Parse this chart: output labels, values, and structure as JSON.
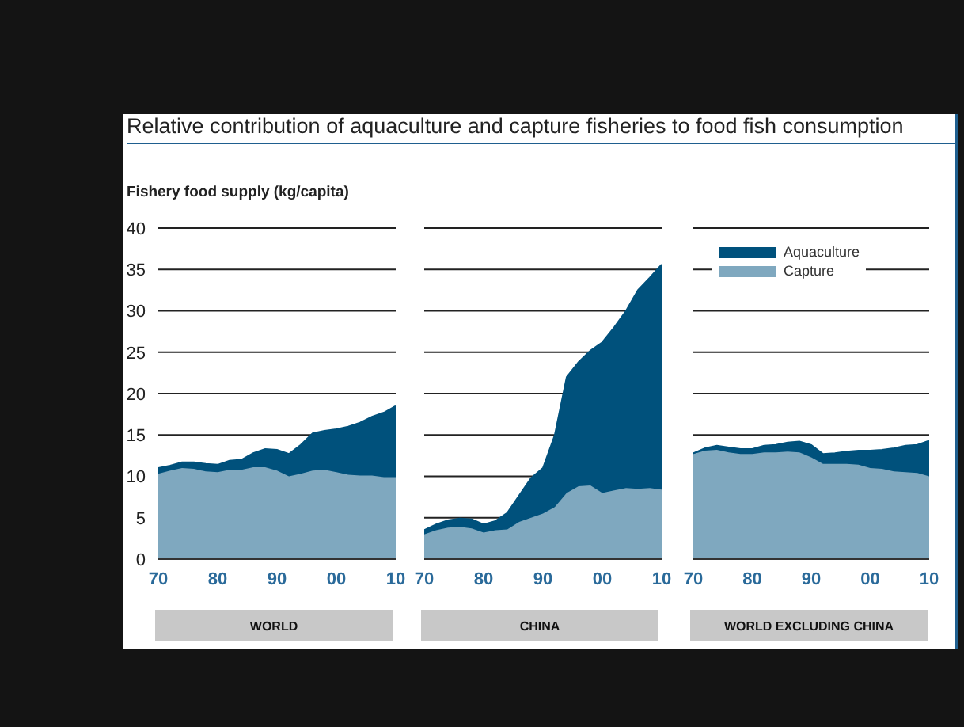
{
  "chart_data": [
    {
      "type": "area",
      "stacked": true,
      "title": "Relative contribution of aquaculture and capture fisheries to food fish consumption",
      "ylabel": "Fishery food supply (kg/capita)",
      "xlabel": "WORLD",
      "x": [
        1970,
        1972,
        1974,
        1976,
        1978,
        1980,
        1982,
        1984,
        1986,
        1988,
        1990,
        1992,
        1994,
        1996,
        1998,
        2000,
        2002,
        2004,
        2006,
        2008,
        2010
      ],
      "xlim": [
        1970,
        2010
      ],
      "xticks": [
        {
          "value": 1970,
          "label": "70"
        },
        {
          "value": 1980,
          "label": "80"
        },
        {
          "value": 1990,
          "label": "90"
        },
        {
          "value": 2000,
          "label": "00"
        },
        {
          "value": 2010,
          "label": "10"
        }
      ],
      "ylim": [
        0,
        40
      ],
      "yticks": [
        0,
        5,
        10,
        15,
        20,
        25,
        30,
        35,
        40
      ],
      "grid": "y",
      "series": [
        {
          "color": "#7fa8bf",
          "values": [
            10.3,
            10.7,
            11.0,
            10.9,
            10.6,
            10.5,
            10.8,
            10.8,
            11.1,
            11.1,
            10.7,
            10.0,
            10.3,
            10.7,
            10.8,
            10.5,
            10.2,
            10.1,
            10.1,
            9.9,
            9.9
          ]
        },
        {
          "color": "#00517c",
          "values": [
            0.7,
            0.6,
            0.7,
            0.8,
            0.9,
            0.9,
            1.1,
            1.2,
            1.7,
            2.2,
            2.5,
            2.7,
            3.5,
            4.5,
            4.7,
            5.2,
            5.8,
            6.4,
            7.1,
            7.8,
            8.6
          ]
        }
      ]
    },
    {
      "type": "area",
      "stacked": true,
      "xlabel": "CHINA",
      "tick_labels": "x",
      "x": [
        1970,
        1972,
        1974,
        1976,
        1978,
        1980,
        1982,
        1984,
        1986,
        1988,
        1990,
        1992,
        1994,
        1996,
        1998,
        2000,
        2002,
        2004,
        2006,
        2008,
        2010
      ],
      "xlim": [
        1970,
        2010
      ],
      "xticks": [
        {
          "value": 1970,
          "label": "70"
        },
        {
          "value": 1980,
          "label": "80"
        },
        {
          "value": 1990,
          "label": "90"
        },
        {
          "value": 2000,
          "label": "00"
        },
        {
          "value": 2010,
          "label": "10"
        }
      ],
      "ylim": [
        0,
        40
      ],
      "yticks": [
        0,
        5,
        10,
        15,
        20,
        25,
        30,
        35,
        40
      ],
      "grid": "y",
      "series": [
        {
          "color": "#7fa8bf",
          "values": [
            3.0,
            3.5,
            3.8,
            3.9,
            3.7,
            3.2,
            3.5,
            3.6,
            4.5,
            5.0,
            5.5,
            6.3,
            8.0,
            8.8,
            8.9,
            8.0,
            8.3,
            8.6,
            8.5,
            8.6,
            8.4
          ]
        },
        {
          "color": "#00517c",
          "values": [
            0.5,
            0.7,
            0.9,
            1.0,
            1.1,
            1.0,
            1.1,
            2.0,
            3.2,
            4.8,
            5.5,
            8.7,
            14.0,
            15.0,
            16.3,
            18.2,
            19.7,
            21.4,
            24.0,
            25.4,
            27.2
          ]
        }
      ]
    },
    {
      "type": "area",
      "stacked": true,
      "xlabel": "WORLD EXCLUDING CHINA",
      "tick_labels": "x",
      "legend": "top",
      "x": [
        1970,
        1972,
        1974,
        1976,
        1978,
        1980,
        1982,
        1984,
        1986,
        1988,
        1990,
        1992,
        1994,
        1996,
        1998,
        2000,
        2002,
        2004,
        2006,
        2008,
        2010
      ],
      "xlim": [
        1970,
        2010
      ],
      "xticks": [
        {
          "value": 1970,
          "label": "70"
        },
        {
          "value": 1980,
          "label": "80"
        },
        {
          "value": 1990,
          "label": "90"
        },
        {
          "value": 2000,
          "label": "00"
        },
        {
          "value": 2010,
          "label": "10"
        }
      ],
      "ylim": [
        0,
        40
      ],
      "yticks": [
        0,
        5,
        10,
        15,
        20,
        25,
        30,
        35,
        40
      ],
      "grid": "y",
      "series": [
        {
          "name": "Capture",
          "color": "#7fa8bf",
          "values": [
            12.7,
            13.1,
            13.2,
            12.9,
            12.7,
            12.7,
            12.9,
            12.9,
            13.0,
            12.9,
            12.3,
            11.5,
            11.5,
            11.5,
            11.4,
            11.0,
            10.9,
            10.6,
            10.5,
            10.4,
            10.0
          ]
        },
        {
          "name": "Aquaculture",
          "color": "#00517c",
          "values": [
            0.1,
            0.3,
            0.5,
            0.6,
            0.6,
            0.6,
            0.8,
            0.9,
            1.1,
            1.3,
            1.5,
            1.2,
            1.3,
            1.5,
            1.7,
            2.1,
            2.3,
            2.8,
            3.2,
            3.4,
            4.3
          ]
        }
      ]
    }
  ]
}
